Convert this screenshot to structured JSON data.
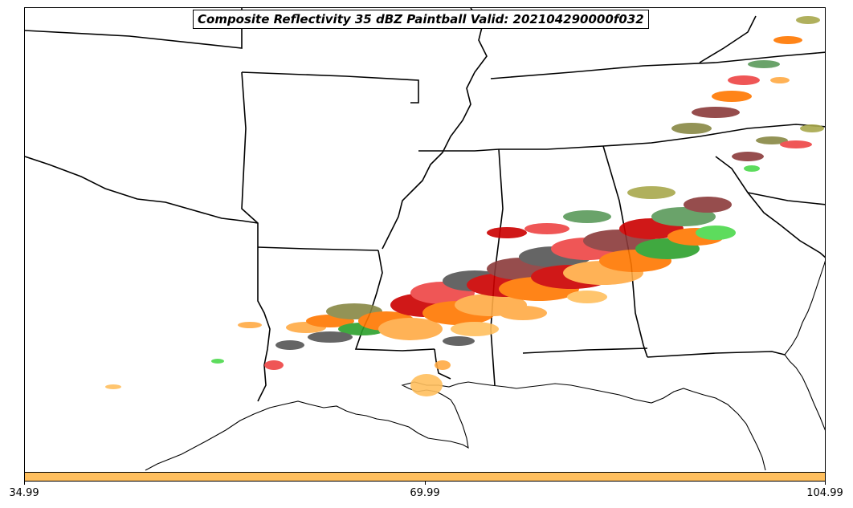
{
  "title": "Composite Reflectivity 35 dBZ Paintball Valid: 202104290000f032",
  "colorbar": {
    "color": "#ffbf5e",
    "ticks": [
      "34.99",
      "69.99",
      "104.99"
    ]
  },
  "paintball_palette": [
    "#cc0000",
    "#ee4444",
    "#ff7700",
    "#ffaa44",
    "#ffbf5e",
    "#2ca02c",
    "#4cd94c",
    "#888844",
    "#a8a84c",
    "#555555",
    "#8b3a3a",
    "#5a9a5a"
  ]
}
